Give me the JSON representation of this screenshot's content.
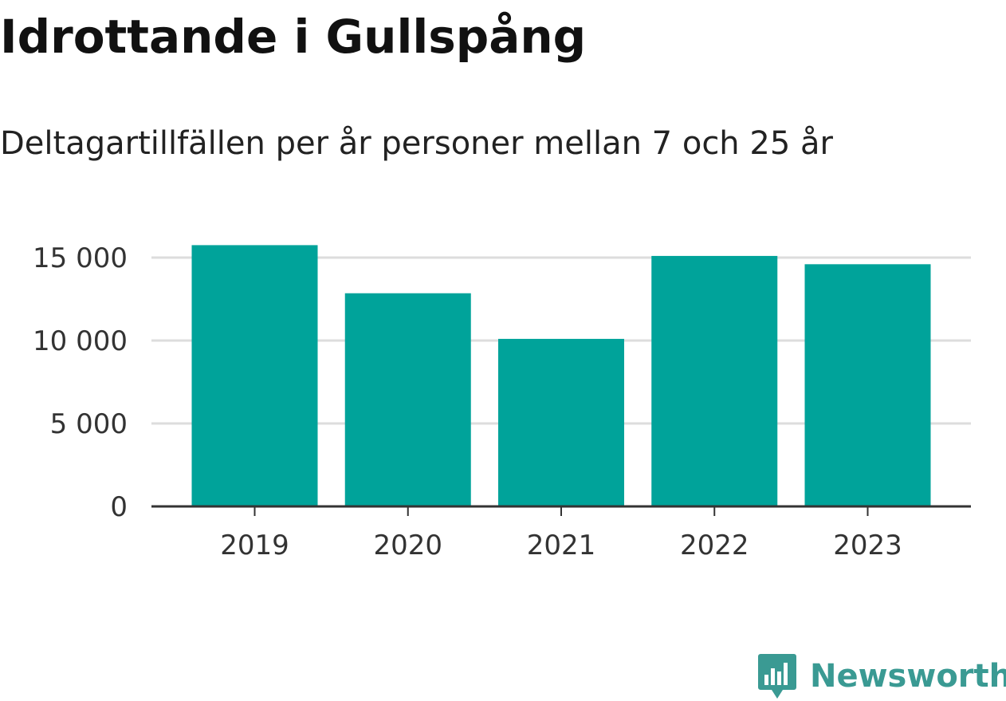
{
  "title": "Idrottande i Gullspång",
  "subtitle": "Deltagartillfällen per år personer mellan 7 och 25 år",
  "brand": {
    "name": "Newsworthy",
    "color": "#3a9a93"
  },
  "colors": {
    "bar": "#00a39a",
    "grid": "#dddddd",
    "axis": "#333333"
  },
  "chart_data": {
    "type": "bar",
    "categories": [
      "2019",
      "2020",
      "2021",
      "2022",
      "2023"
    ],
    "values": [
      15750,
      12850,
      10100,
      15100,
      14600
    ],
    "ylim": [
      0,
      15000
    ],
    "yticks": [
      0,
      5000,
      10000,
      15000
    ],
    "ytick_labels": [
      "0",
      "5 000",
      "10 000",
      "15 000"
    ],
    "grid": true,
    "xlabel": "",
    "ylabel": ""
  }
}
